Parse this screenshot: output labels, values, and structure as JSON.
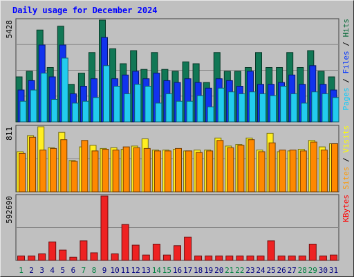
{
  "title": "Daily usage for December 2024",
  "chart_data": [
    {
      "type": "bar",
      "panel": "pages-files-hits",
      "ymax_label": "5428",
      "ylim": [
        0,
        5428
      ],
      "x": [
        "1",
        "2",
        "3",
        "4",
        "5",
        "6",
        "7",
        "8",
        "9",
        "10",
        "11",
        "12",
        "13",
        "14",
        "15",
        "16",
        "17",
        "18",
        "19",
        "20",
        "21",
        "22",
        "23",
        "24",
        "25",
        "26",
        "27",
        "28",
        "29",
        "30",
        "31"
      ],
      "weekend_days": [
        "1",
        "7",
        "8",
        "14",
        "15",
        "21",
        "22",
        "28",
        "29"
      ],
      "legend": [
        {
          "label": "Pages",
          "color": "#00ccff"
        },
        {
          "label": "Files",
          "color": "#0033ff"
        },
        {
          "label": "Hits",
          "color": "#006633"
        }
      ],
      "series": [
        {
          "name": "Hits",
          "color": "#117755",
          "values": [
            2400,
            2700,
            4900,
            2900,
            5100,
            2000,
            2600,
            3700,
            5428,
            3900,
            3100,
            3800,
            2800,
            3700,
            2800,
            2700,
            3200,
            3100,
            2100,
            3700,
            2700,
            2700,
            2900,
            3700,
            2900,
            2900,
            3700,
            2900,
            3800,
            2700,
            2400
          ]
        },
        {
          "name": "Files",
          "color": "#1133ee",
          "values": [
            1700,
            2200,
            4100,
            2400,
            4100,
            1500,
            1900,
            2300,
            4500,
            2300,
            2500,
            2700,
            2300,
            2600,
            2200,
            2100,
            2300,
            2100,
            1800,
            2300,
            2200,
            1900,
            2700,
            2000,
            2000,
            2100,
            2500,
            2000,
            3000,
            2000,
            1700
          ]
        },
        {
          "name": "Pages",
          "color": "#22ccee",
          "values": [
            1100,
            1700,
            2600,
            1200,
            3400,
            1000,
            1100,
            1300,
            3000,
            1900,
            1500,
            2000,
            1900,
            1000,
            1500,
            1100,
            1100,
            1400,
            800,
            1800,
            1600,
            1500,
            1600,
            1500,
            1400,
            1900,
            1500,
            1000,
            1600,
            1500,
            1300
          ]
        }
      ]
    },
    {
      "type": "bar",
      "panel": "sites-visits",
      "ymax_label": "811",
      "ylim": [
        0,
        811
      ],
      "legend": [
        {
          "label": "Sites",
          "color": "#ff9900"
        },
        {
          "label": "Visits",
          "color": "#ffff00"
        }
      ],
      "series": [
        {
          "name": "Visits",
          "color": "#ffee22",
          "values": [
            500,
            700,
            811,
            550,
            740,
            390,
            560,
            580,
            540,
            550,
            530,
            570,
            660,
            520,
            520,
            530,
            510,
            520,
            520,
            670,
            570,
            590,
            670,
            520,
            730,
            500,
            510,
            530,
            640,
            560,
            600
          ]
        },
        {
          "name": "Sites",
          "color": "#ff8800",
          "values": [
            480,
            680,
            520,
            540,
            650,
            380,
            640,
            510,
            530,
            520,
            560,
            550,
            540,
            510,
            510,
            540,
            510,
            490,
            510,
            640,
            550,
            580,
            650,
            500,
            610,
            520,
            520,
            510,
            620,
            520,
            600
          ]
        }
      ]
    },
    {
      "type": "bar",
      "panel": "kbytes",
      "ymax_label": "592690",
      "ylim": [
        0,
        592690
      ],
      "legend": [
        {
          "label": "KBytes",
          "color": "#ff0000"
        }
      ],
      "series": [
        {
          "name": "KBytes",
          "color": "#ee2222",
          "values": [
            40000,
            40000,
            60000,
            170000,
            95000,
            30000,
            180000,
            70000,
            592690,
            60000,
            330000,
            140000,
            50000,
            150000,
            50000,
            135000,
            215000,
            40000,
            40000,
            40000,
            40000,
            40000,
            40000,
            40000,
            180000,
            40000,
            40000,
            40000,
            150000,
            40000,
            50000
          ]
        }
      ]
    }
  ]
}
